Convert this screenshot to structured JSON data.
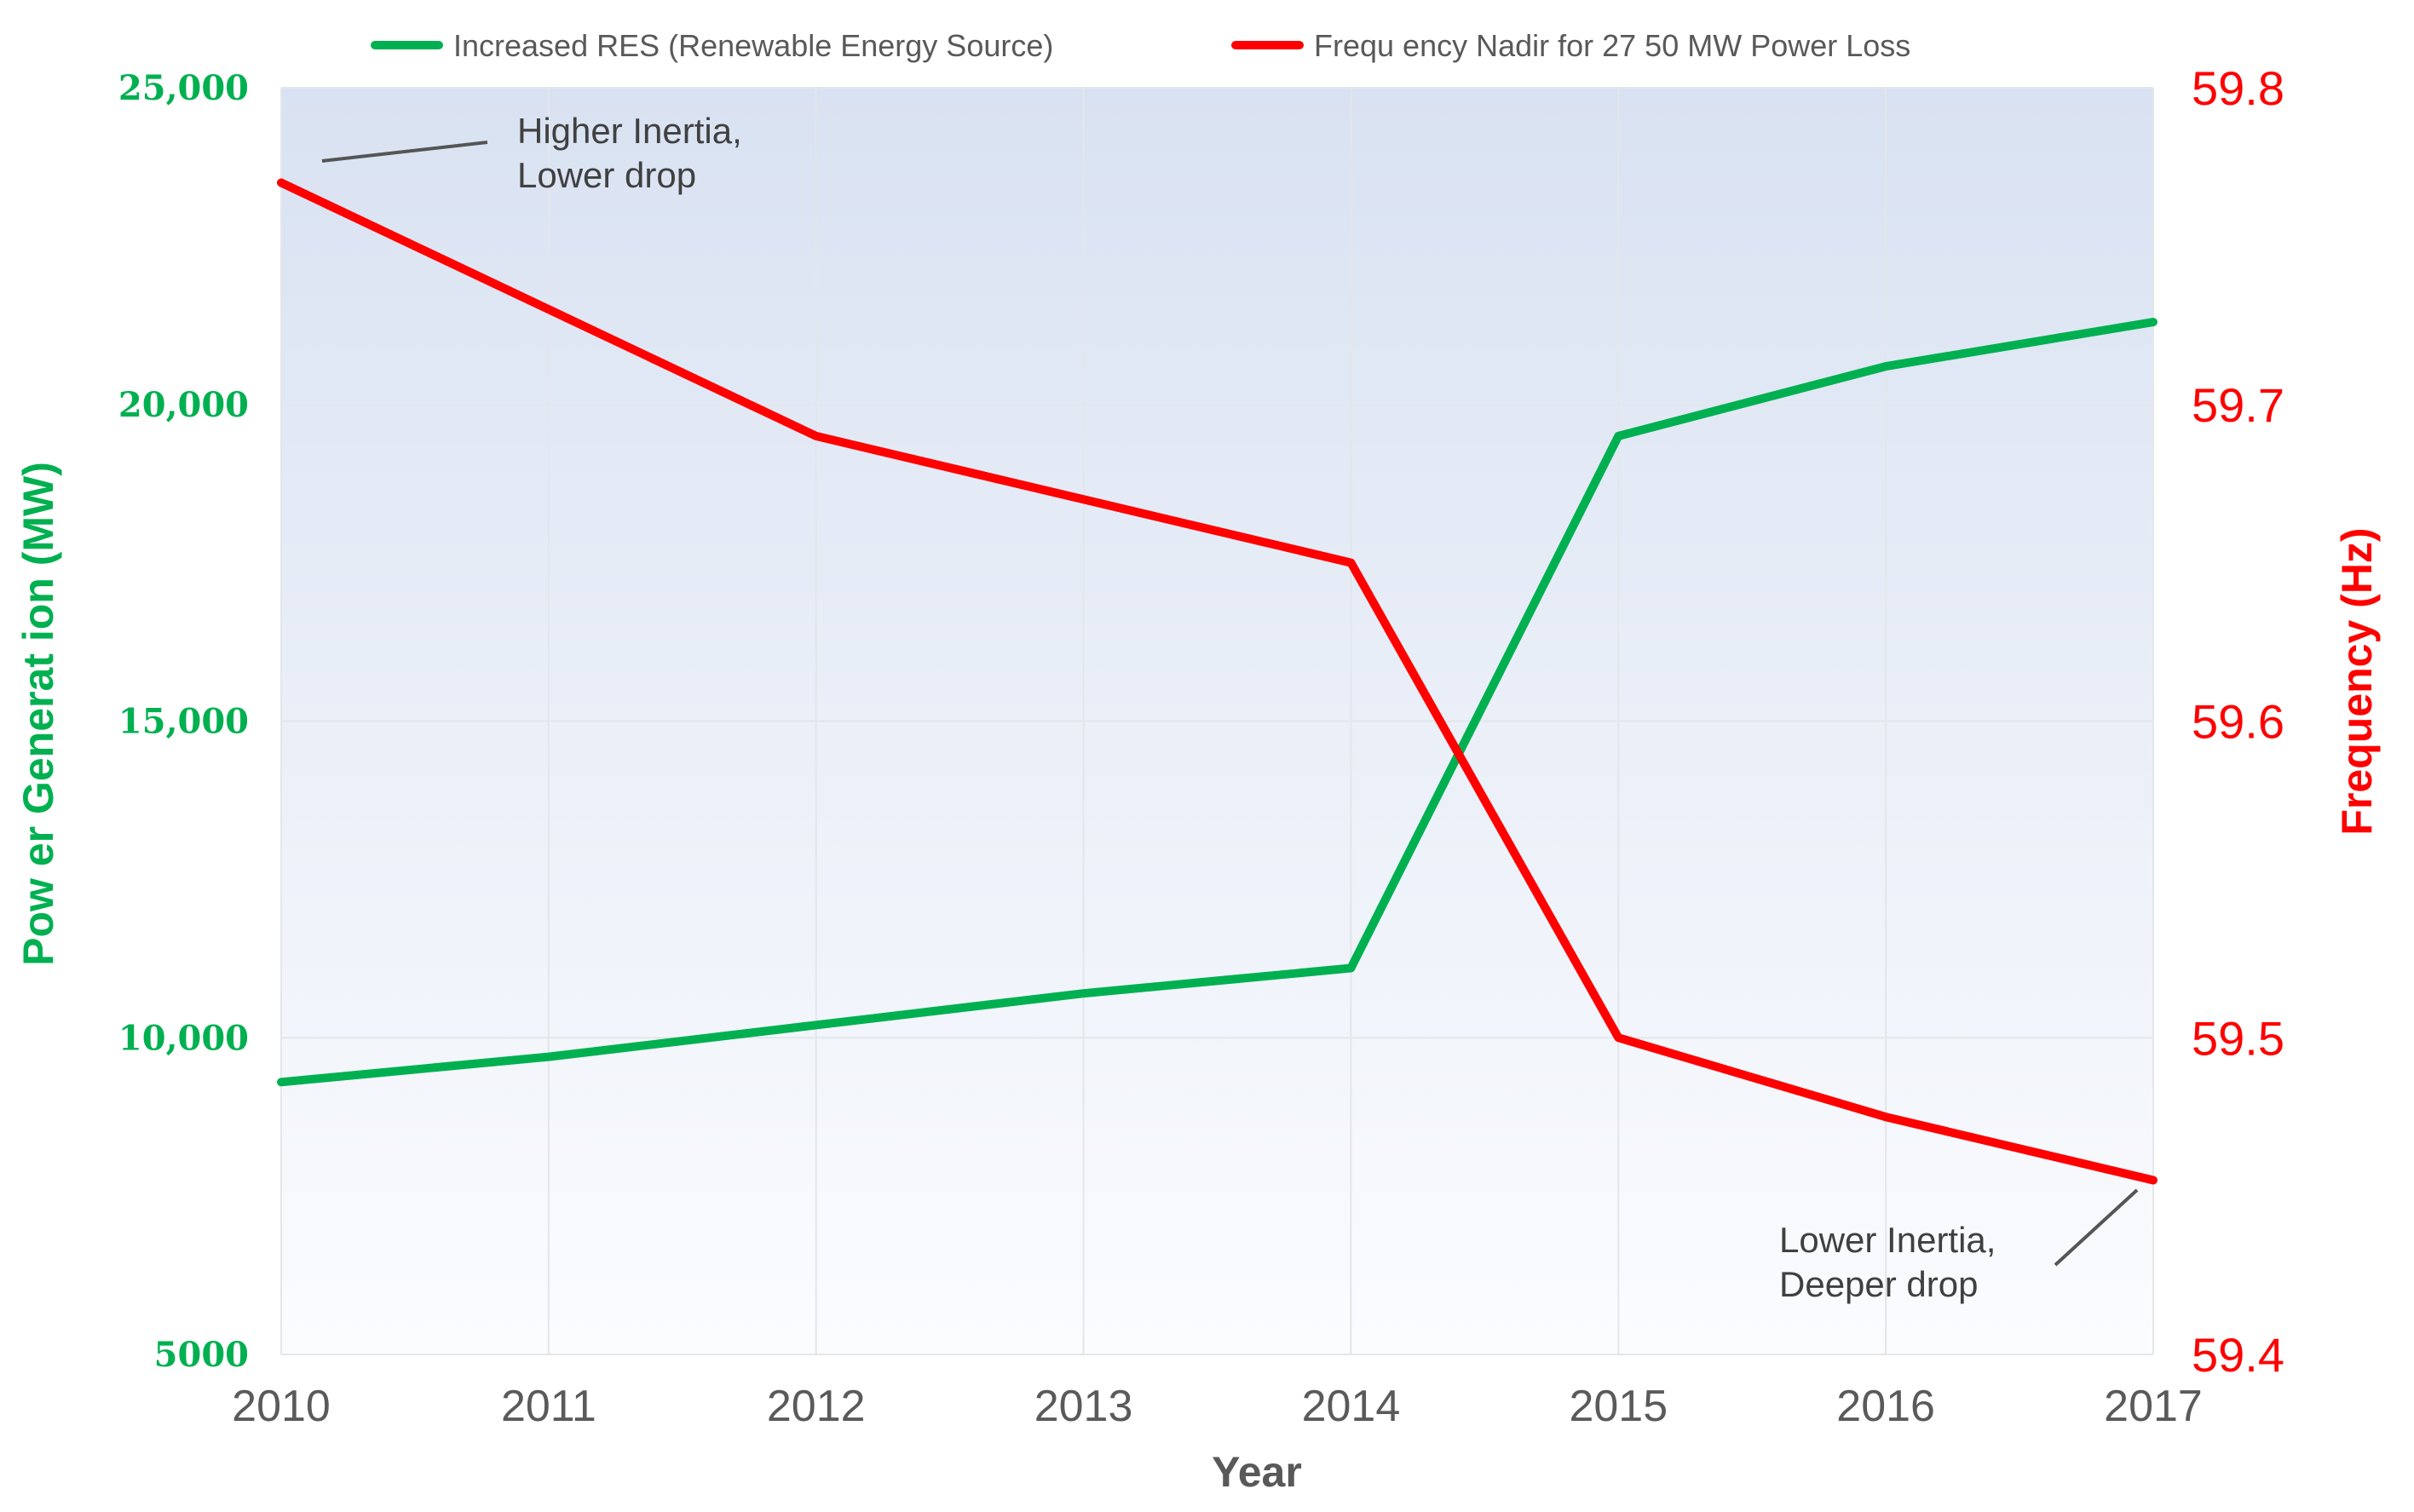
{
  "chart_data": {
    "type": "line",
    "x": [
      2010,
      2011,
      2012,
      2013,
      2014,
      2015,
      2016,
      2017
    ],
    "x_tick_labels": [
      "2010",
      "2011",
      "2012",
      "2013",
      "2014",
      "2015",
      "2016",
      "2017"
    ],
    "xlabel": "Year",
    "y_left": {
      "label": "Pow er  Generat  ion  (MW)",
      "range": [
        5000,
        25000
      ],
      "ticks": [
        5000,
        10000,
        15000,
        20000,
        25000
      ],
      "tick_labels": [
        "5000",
        "10,000",
        "15,000",
        "20,000",
        "25,000"
      ],
      "color": "#00b050"
    },
    "y_right": {
      "label": "Frequency (Hz)",
      "range": [
        59.4,
        59.8
      ],
      "ticks": [
        59.4,
        59.5,
        59.6,
        59.7,
        59.8
      ],
      "tick_labels": [
        "59.4",
        "59.5",
        "59.6",
        "59.7",
        "59.8"
      ],
      "color": "#ff0000"
    },
    "series": [
      {
        "name": "Increased RES (Renewable Energy Source)",
        "axis": "left",
        "color": "#00b050",
        "values": [
          9300,
          9700,
          10200,
          10700,
          11100,
          19500,
          20600,
          21300
        ]
      },
      {
        "name": "Frequ ency Nadir for 27 50  MW Power Loss",
        "axis": "right",
        "color": "#ff0000",
        "values": [
          59.77,
          59.73,
          59.69,
          59.67,
          59.65,
          59.5,
          59.475,
          59.455
        ]
      }
    ],
    "legend_position": "top-center",
    "grid": true,
    "annotations": [
      {
        "lines": [
          "Higher Inertia,",
          "Lower drop"
        ],
        "x": 2010,
        "y": 59.77,
        "axis": "right"
      },
      {
        "lines": [
          "Lower Inertia,",
          "Deeper drop"
        ],
        "x": 2017,
        "y": 59.455,
        "axis": "right"
      }
    ],
    "colors": {
      "background_top": "#d9e2f2",
      "background_bottom": "#fbfcfe",
      "grid": "#e3e6ea",
      "tick_text": "#5a5a5a",
      "axis_title_x": "#595959",
      "legend_text": "#595959",
      "annotation": "#404040"
    }
  }
}
